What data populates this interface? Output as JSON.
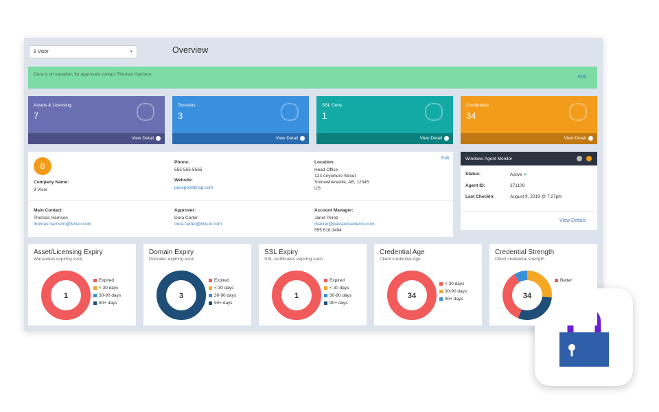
{
  "header": {
    "account": "8 Visor",
    "title": "Overview"
  },
  "notice": {
    "text": "Dora is on vacation, for approvals contact Thomas Harrison",
    "action": "Edit"
  },
  "tiles": [
    {
      "label": "Assets & Licensing",
      "value": 7,
      "link": "View Detail"
    },
    {
      "label": "Domains",
      "value": 3,
      "link": "View Detail"
    },
    {
      "label": "SSL Certs",
      "value": 1,
      "link": "View Detail"
    },
    {
      "label": "Credentials",
      "value": 34,
      "link": "View Detail"
    }
  ],
  "company": {
    "logo": "8",
    "action": "Edit",
    "fields": [
      {
        "label": "Company Name:",
        "lines": [
          "8 Visor"
        ],
        "links": []
      },
      {
        "label": "Phone:",
        "lines": [
          "555-555-5565"
        ],
        "links": []
      },
      {
        "label": "Website:",
        "lines": [],
        "links": [
          "passportalmsp.com"
        ]
      },
      {
        "label": "Location:",
        "lines": [
          "Head Office",
          "123 Anywhere Street",
          "Somewhereville, AB, 12345",
          "US"
        ],
        "links": []
      },
      {
        "label": "Main Contact:",
        "lines": [
          "Thomas Harrison"
        ],
        "links": [
          "thomas.harrison@8visor.com"
        ]
      },
      {
        "label": "Approver:",
        "lines": [
          "Dora Carter"
        ],
        "links": [
          "dora.carter@8visor.com"
        ]
      },
      {
        "label": "Account Manager:",
        "lines": [
          "Janet Perez"
        ],
        "links": [
          "rbarker@passportaldemo.com"
        ],
        "after": [
          "555.618.3494"
        ]
      }
    ]
  },
  "agent_monitor": {
    "title": "Windows Agent Monitor",
    "rows": [
      {
        "label": "Status:",
        "value": "Active"
      },
      {
        "label": "Agent ID:",
        "value": "371109"
      },
      {
        "label": "Last Checkin:",
        "value": "August 9, 2019 @ 7:27pm"
      }
    ],
    "link": "View Details"
  },
  "widgets": [
    {
      "title": "Asset/Licensing Expiry",
      "subtitle": "Warranties expiring soon",
      "total": 1,
      "legend": [
        {
          "name": "Expired",
          "color": "#f25b5b"
        },
        {
          "name": "< 30 days",
          "color": "#f5a623"
        },
        {
          "name": "30-90 days",
          "color": "#3a8fd9"
        },
        {
          "name": "90+ days",
          "color": "#1f4e79"
        }
      ],
      "segments": {
        "colors": [
          "#f25b5b",
          "#f5a623",
          "#3a8fd9",
          "#1f4e79"
        ],
        "values": [
          1,
          0,
          0,
          0
        ]
      }
    },
    {
      "title": "Domain Expiry",
      "subtitle": "Domains expiring soon",
      "total": 3,
      "legend": [
        {
          "name": "Expired",
          "color": "#f25b5b"
        },
        {
          "name": "< 30 days",
          "color": "#f5a623"
        },
        {
          "name": "30-90 days",
          "color": "#3a8fd9"
        },
        {
          "name": "90+ days",
          "color": "#1f4e79"
        }
      ],
      "segments": {
        "colors": [
          "#f25b5b",
          "#f5a623",
          "#3a8fd9",
          "#1f4e79"
        ],
        "values": [
          0,
          0,
          0,
          3
        ]
      }
    },
    {
      "title": "SSL Expiry",
      "subtitle": "SSL certificates expiring soon",
      "total": 1,
      "legend": [
        {
          "name": "Expired",
          "color": "#f25b5b"
        },
        {
          "name": "< 30 days",
          "color": "#f5a623"
        },
        {
          "name": "30-90 days",
          "color": "#3a8fd9"
        },
        {
          "name": "90+ days",
          "color": "#1f4e79"
        }
      ],
      "segments": {
        "colors": [
          "#f25b5b",
          "#f5a623",
          "#3a8fd9",
          "#1f4e79"
        ],
        "values": [
          1,
          0,
          0,
          0
        ]
      }
    },
    {
      "title": "Credential Age",
      "subtitle": "Client credential Age",
      "total": 34,
      "legend": [
        {
          "name": "< 30 days",
          "color": "#f25b5b"
        },
        {
          "name": "30-90 days",
          "color": "#f5a623"
        },
        {
          "name": "90+ days",
          "color": "#3a8fd9"
        }
      ],
      "segments": {
        "colors": [
          "#f25b5b",
          "#f5a623",
          "#3a8fd9"
        ],
        "values": [
          34,
          0,
          0
        ]
      }
    },
    {
      "title": "Credential Strength",
      "subtitle": "Client credential strength",
      "total": 34,
      "legend": [
        {
          "name": "Better",
          "color": "#f25b5b"
        }
      ],
      "segments": {
        "colors": [
          "#f5a623",
          "#1f4e79",
          "#f25b5b",
          "#3a8fd9"
        ],
        "values": [
          9,
          10,
          12,
          3
        ]
      }
    }
  ]
}
